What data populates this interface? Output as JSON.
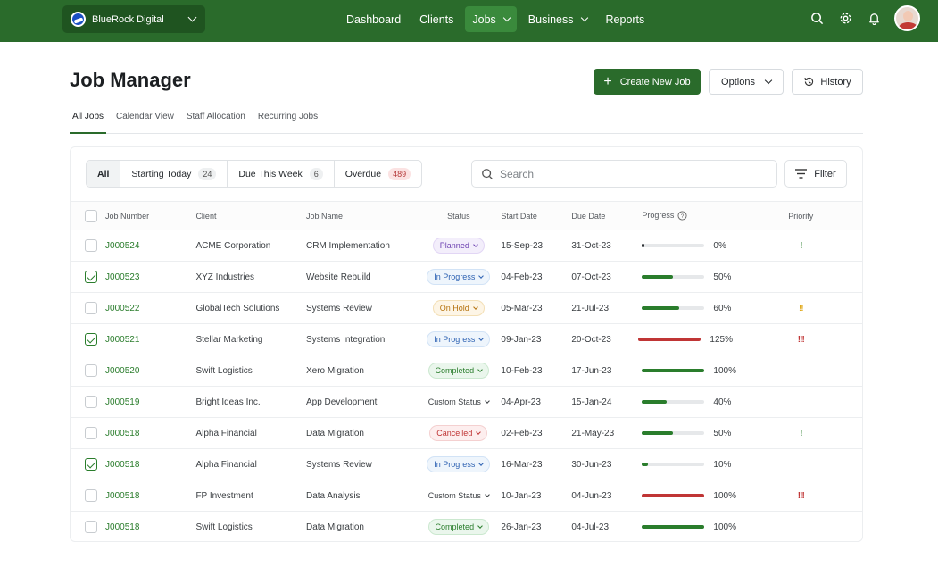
{
  "org": {
    "name": "BlueRock Digital"
  },
  "nav": [
    {
      "label": "Dashboard",
      "active": false,
      "has_menu": false
    },
    {
      "label": "Clients",
      "active": false,
      "has_menu": false
    },
    {
      "label": "Jobs",
      "active": true,
      "has_menu": true
    },
    {
      "label": "Business",
      "active": false,
      "has_menu": true
    },
    {
      "label": "Reports",
      "active": false,
      "has_menu": false
    }
  ],
  "page": {
    "title": "Job Manager"
  },
  "actions": {
    "create": "Create New Job",
    "options": "Options",
    "history": "History"
  },
  "tabs": [
    {
      "label": "All Jobs",
      "active": true
    },
    {
      "label": "Calendar View",
      "active": false
    },
    {
      "label": "Staff Allocation",
      "active": false
    },
    {
      "label": "Recurring Jobs",
      "active": false
    }
  ],
  "segments": [
    {
      "label": "All",
      "count": null,
      "active": true
    },
    {
      "label": "Starting Today",
      "count": "24",
      "alert": false
    },
    {
      "label": "Due This Week",
      "count": "6",
      "alert": false
    },
    {
      "label": "Overdue",
      "count": "489",
      "alert": true
    }
  ],
  "search": {
    "placeholder": "Search"
  },
  "filter": {
    "label": "Filter"
  },
  "table": {
    "columns": [
      "Job Number",
      "Client",
      "Job Name",
      "Status",
      "Start Date",
      "Due Date",
      "Progress",
      "Priority"
    ],
    "rows": [
      {
        "checked": false,
        "job": "J000524",
        "client": "ACME Corporation",
        "name": "CRM Implementation",
        "status": "Planned",
        "status_kind": "planned",
        "start": "15-Sep-23",
        "due": "31-Oct-23",
        "progress": 0,
        "progress_label": "0%",
        "priority": "!",
        "priority_color": "#2a7d2c"
      },
      {
        "checked": true,
        "job": "J000523",
        "client": "XYZ Industries",
        "name": "Website Rebuild",
        "status": "In Progress",
        "status_kind": "progress",
        "start": "04-Feb-23",
        "due": "07-Oct-23",
        "progress": 50,
        "progress_label": "50%",
        "priority": "",
        "priority_color": ""
      },
      {
        "checked": false,
        "job": "J000522",
        "client": "GlobalTech Solutions",
        "name": "Systems Review",
        "status": "On Hold",
        "status_kind": "hold",
        "start": "05-Mar-23",
        "due": "21-Jul-23",
        "progress": 60,
        "progress_label": "60%",
        "priority": "!!",
        "priority_color": "#e0a81a"
      },
      {
        "checked": true,
        "job": "J000521",
        "client": "Stellar Marketing",
        "name": "Systems Integration",
        "status": "In Progress",
        "status_kind": "progress",
        "start": "09-Jan-23",
        "due": "20-Oct-23",
        "progress": 125,
        "progress_label": "125%",
        "priority": "!!!",
        "priority_color": "#c03535"
      },
      {
        "checked": false,
        "job": "J000520",
        "client": "Swift Logistics",
        "name": "Xero Migration",
        "status": "Completed",
        "status_kind": "completed",
        "start": "10-Feb-23",
        "due": "17-Jun-23",
        "progress": 100,
        "progress_label": "100%",
        "priority": "",
        "priority_color": ""
      },
      {
        "checked": false,
        "job": "J000519",
        "client": "Bright Ideas Inc.",
        "name": "App Development",
        "status": "Custom Status",
        "status_kind": "custom",
        "start": "04-Apr-23",
        "due": "15-Jan-24",
        "progress": 40,
        "progress_label": "40%",
        "priority": "",
        "priority_color": ""
      },
      {
        "checked": false,
        "job": "J000518",
        "client": "Alpha Financial",
        "name": "Data Migration",
        "status": "Cancelled",
        "status_kind": "cancelled",
        "start": "02-Feb-23",
        "due": "21-May-23",
        "progress": 50,
        "progress_label": "50%",
        "priority": "!",
        "priority_color": "#2a7d2c"
      },
      {
        "checked": true,
        "job": "J000518",
        "client": "Alpha Financial",
        "name": "Systems Review",
        "status": "In Progress",
        "status_kind": "progress",
        "start": "16-Mar-23",
        "due": "30-Jun-23",
        "progress": 10,
        "progress_label": "10%",
        "priority": "",
        "priority_color": ""
      },
      {
        "checked": false,
        "job": "J000518",
        "client": "FP Investment",
        "name": "Data Analysis",
        "status": "Custom Status",
        "status_kind": "custom",
        "start": "10-Jan-23",
        "due": "04-Jun-23",
        "progress": 100,
        "progress_label": "100%",
        "priority": "!!!",
        "priority_color": "#c03535",
        "bar_color": "#c03535"
      },
      {
        "checked": false,
        "job": "J000518",
        "client": "Swift Logistics",
        "name": "Data Migration",
        "status": "Completed",
        "status_kind": "completed",
        "start": "26-Jan-23",
        "due": "04-Jul-23",
        "progress": 100,
        "progress_label": "100%",
        "priority": "",
        "priority_color": ""
      }
    ]
  },
  "colors": {
    "brand": "#2a6b2b",
    "bar_normal": "#2a7d2c",
    "bar_over": "#c03535"
  }
}
